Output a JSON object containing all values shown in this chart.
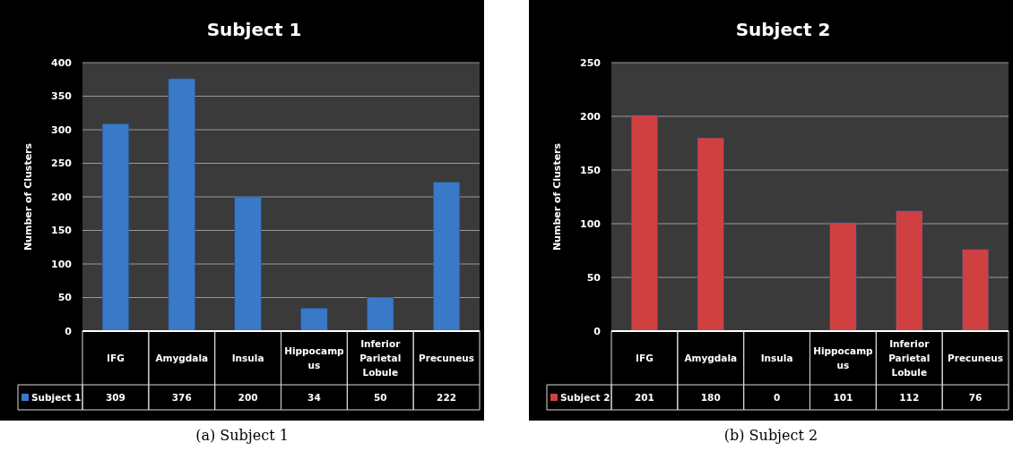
{
  "chart_data": [
    {
      "type": "bar",
      "title": "Subject 1",
      "ylabel": "Number of Clusters",
      "categories": [
        "IFG",
        "Amygdala",
        "Insula",
        "Hippocampus",
        "Inferior Parietal Lobule",
        "Precuneus"
      ],
      "series": [
        {
          "name": "Subject 1",
          "color": "#3a78c8",
          "values": [
            309,
            376,
            200,
            34,
            50,
            222
          ]
        }
      ],
      "ylim": [
        0,
        400
      ],
      "yticks": [
        0,
        50,
        100,
        150,
        200,
        250,
        300,
        350,
        400
      ],
      "grid": "y",
      "data_labels": true,
      "legend": "bottom",
      "annotations": [
        "(a) Subject 1"
      ]
    },
    {
      "type": "bar",
      "title": "Subject 2",
      "ylabel": "Number of Clusters",
      "categories": [
        "IFG",
        "Amygdala",
        "Insula",
        "Hippocampus",
        "Inferior Parietal Lobule",
        "Precuneus"
      ],
      "series": [
        {
          "name": "Subject 2",
          "color": "#d04040",
          "values": [
            201,
            180,
            0,
            101,
            112,
            76
          ]
        }
      ],
      "ylim": [
        0,
        250
      ],
      "yticks": [
        0,
        50,
        100,
        150,
        200,
        250
      ],
      "grid": "y",
      "data_labels": true,
      "legend": "bottom",
      "annotations": [
        "(b) Subject 2"
      ]
    }
  ]
}
